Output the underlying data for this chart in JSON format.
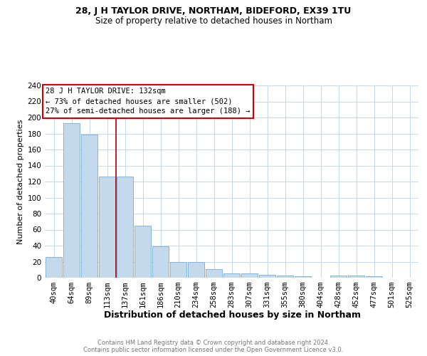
{
  "title1": "28, J H TAYLOR DRIVE, NORTHAM, BIDEFORD, EX39 1TU",
  "title2": "Size of property relative to detached houses in Northam",
  "xlabel": "Distribution of detached houses by size in Northam",
  "ylabel": "Number of detached properties",
  "footnote1": "Contains HM Land Registry data © Crown copyright and database right 2024.",
  "footnote2": "Contains public sector information licensed under the Open Government Licence v3.0.",
  "annotation_title": "28 J H TAYLOR DRIVE: 132sqm",
  "annotation_line2": "← 73% of detached houses are smaller (502)",
  "annotation_line3": "27% of semi-detached houses are larger (188) →",
  "bar_labels": [
    "40sqm",
    "64sqm",
    "89sqm",
    "113sqm",
    "137sqm",
    "161sqm",
    "186sqm",
    "210sqm",
    "234sqm",
    "258sqm",
    "283sqm",
    "307sqm",
    "331sqm",
    "355sqm",
    "380sqm",
    "404sqm",
    "428sqm",
    "452sqm",
    "477sqm",
    "501sqm",
    "525sqm"
  ],
  "bar_values": [
    26,
    193,
    179,
    126,
    126,
    65,
    39,
    20,
    20,
    11,
    5,
    5,
    4,
    3,
    2,
    0,
    3,
    3,
    2,
    0,
    0
  ],
  "bar_color": "#c5d9ed",
  "bar_edge_color": "#7aaed4",
  "red_line_x": 3.5,
  "highlight_line_color": "#aa0000",
  "ylim": [
    0,
    240
  ],
  "yticks": [
    0,
    20,
    40,
    60,
    80,
    100,
    120,
    140,
    160,
    180,
    200,
    220,
    240
  ],
  "annotation_box_color": "#ffffff",
  "annotation_box_edge_color": "#cc0000",
  "background_color": "#ffffff",
  "grid_color": "#c8d8e8",
  "title1_fontsize": 9,
  "title2_fontsize": 8.5,
  "xlabel_fontsize": 9,
  "ylabel_fontsize": 8,
  "tick_fontsize": 7.5,
  "annotation_fontsize": 7.5,
  "footnote_fontsize": 6
}
